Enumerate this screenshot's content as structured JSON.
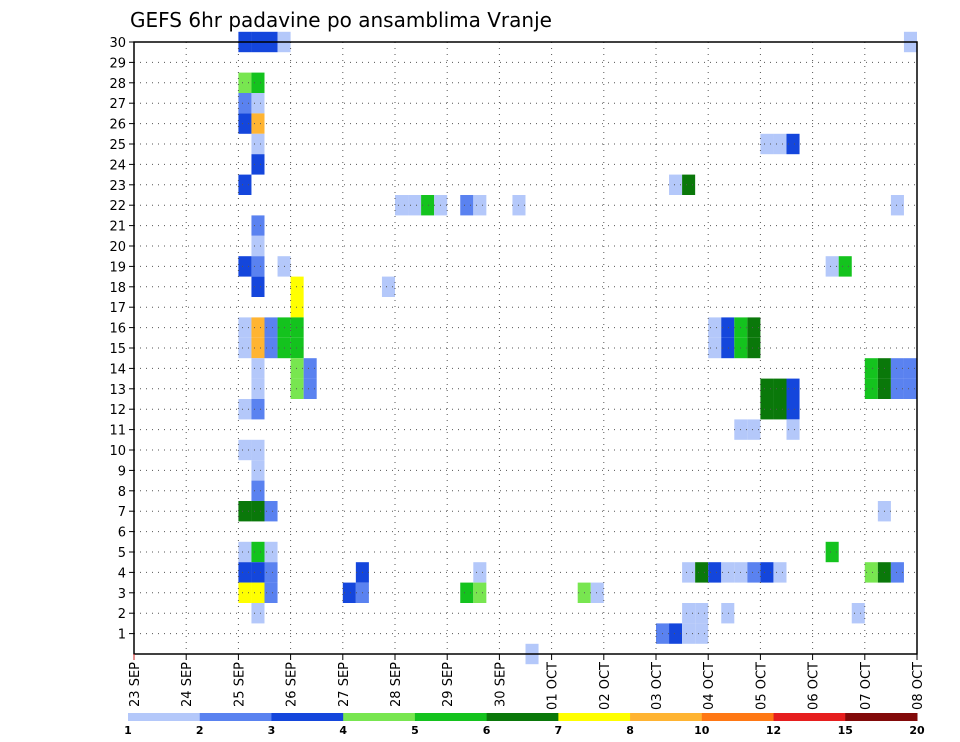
{
  "chart_data": {
    "type": "heatmap",
    "title": "GEFS 6hr padavine po ansamblima Vranje",
    "xlabel": "",
    "ylabel": "",
    "x_tick_labels": [
      "23 SEP",
      "24 SEP",
      "25 SEP",
      "26 SEP",
      "27 SEP",
      "28 SEP",
      "29 SEP",
      "30 SEP",
      "01 OCT",
      "02 OCT",
      "03 OCT",
      "04 OCT",
      "05 OCT",
      "06 OCT",
      "07 OCT",
      "08 OCT"
    ],
    "y_tick_labels": [
      "1",
      "2",
      "3",
      "4",
      "5",
      "6",
      "7",
      "8",
      "9",
      "10",
      "11",
      "12",
      "13",
      "14",
      "15",
      "16",
      "17",
      "18",
      "19",
      "20",
      "21",
      "22",
      "23",
      "24",
      "25",
      "26",
      "27",
      "28",
      "29",
      "30"
    ],
    "xlim_steps": [
      0,
      60
    ],
    "steps_per_day": 4,
    "ylim": [
      0,
      30
    ],
    "grid": true,
    "legend_position": "bottom",
    "legend": {
      "colors": [
        "#b4c8fa",
        "#5a82f0",
        "#1446dc",
        "#78e650",
        "#14c31e",
        "#0a780a",
        "#ffff00",
        "#ffb432",
        "#ff7814",
        "#e61e1e",
        "#820a0a"
      ],
      "labels": [
        "1",
        "2",
        "3",
        "4",
        "5",
        "6",
        "7",
        "8",
        "10",
        "12",
        "15",
        "20"
      ]
    },
    "cells": [
      {
        "member": 30,
        "step": 8,
        "value": 3
      },
      {
        "member": 30,
        "step": 9,
        "value": 3
      },
      {
        "member": 30,
        "step": 10,
        "value": 3
      },
      {
        "member": 30,
        "step": 11,
        "value": 1.5
      },
      {
        "member": 30,
        "step": 59,
        "value": 1.5
      },
      {
        "member": 28,
        "step": 8,
        "value": 4.5
      },
      {
        "member": 28,
        "step": 9,
        "value": 5.5
      },
      {
        "member": 27,
        "step": 8,
        "value": 2.5
      },
      {
        "member": 27,
        "step": 9,
        "value": 1.5
      },
      {
        "member": 26,
        "step": 8,
        "value": 3
      },
      {
        "member": 26,
        "step": 9,
        "value": 9
      },
      {
        "member": 25,
        "step": 9,
        "value": 1.5
      },
      {
        "member": 25,
        "step": 48,
        "value": 1.5
      },
      {
        "member": 25,
        "step": 49,
        "value": 1.5
      },
      {
        "member": 25,
        "step": 50,
        "value": 3
      },
      {
        "member": 24,
        "step": 9,
        "value": 3
      },
      {
        "member": 23,
        "step": 8,
        "value": 3
      },
      {
        "member": 23,
        "step": 41,
        "value": 1.5
      },
      {
        "member": 23,
        "step": 42,
        "value": 6.5
      },
      {
        "member": 22,
        "step": 20,
        "value": 1.5
      },
      {
        "member": 22,
        "step": 21,
        "value": 1.5
      },
      {
        "member": 22,
        "step": 22,
        "value": 5.5
      },
      {
        "member": 22,
        "step": 23,
        "value": 1.5
      },
      {
        "member": 22,
        "step": 25,
        "value": 2.5
      },
      {
        "member": 22,
        "step": 26,
        "value": 1.5
      },
      {
        "member": 22,
        "step": 29,
        "value": 1.5
      },
      {
        "member": 22,
        "step": 58,
        "value": 1.5
      },
      {
        "member": 21,
        "step": 9,
        "value": 2.5
      },
      {
        "member": 20,
        "step": 9,
        "value": 1.5
      },
      {
        "member": 19,
        "step": 8,
        "value": 3
      },
      {
        "member": 19,
        "step": 9,
        "value": 2.5
      },
      {
        "member": 19,
        "step": 11,
        "value": 1.5
      },
      {
        "member": 19,
        "step": 53,
        "value": 1.5
      },
      {
        "member": 19,
        "step": 54,
        "value": 5.5
      },
      {
        "member": 18,
        "step": 9,
        "value": 3
      },
      {
        "member": 18,
        "step": 12,
        "value": 7.5
      },
      {
        "member": 18,
        "step": 19,
        "value": 1.5
      },
      {
        "member": 17,
        "step": 12,
        "value": 7.5
      },
      {
        "member": 16,
        "step": 8,
        "value": 1.5
      },
      {
        "member": 16,
        "step": 9,
        "value": 9
      },
      {
        "member": 16,
        "step": 10,
        "value": 2.5
      },
      {
        "member": 16,
        "step": 11,
        "value": 5.5
      },
      {
        "member": 16,
        "step": 12,
        "value": 5.5
      },
      {
        "member": 16,
        "step": 44,
        "value": 1.5
      },
      {
        "member": 16,
        "step": 45,
        "value": 3
      },
      {
        "member": 16,
        "step": 46,
        "value": 5.5
      },
      {
        "member": 16,
        "step": 47,
        "value": 6.5
      },
      {
        "member": 15,
        "step": 8,
        "value": 1.5
      },
      {
        "member": 15,
        "step": 9,
        "value": 9
      },
      {
        "member": 15,
        "step": 10,
        "value": 2.5
      },
      {
        "member": 15,
        "step": 11,
        "value": 5.5
      },
      {
        "member": 15,
        "step": 12,
        "value": 5.5
      },
      {
        "member": 15,
        "step": 44,
        "value": 1.5
      },
      {
        "member": 15,
        "step": 45,
        "value": 3
      },
      {
        "member": 15,
        "step": 46,
        "value": 5.5
      },
      {
        "member": 15,
        "step": 47,
        "value": 6.5
      },
      {
        "member": 14,
        "step": 9,
        "value": 1.5
      },
      {
        "member": 14,
        "step": 12,
        "value": 4.5
      },
      {
        "member": 14,
        "step": 13,
        "value": 2.5
      },
      {
        "member": 14,
        "step": 56,
        "value": 5.5
      },
      {
        "member": 14,
        "step": 57,
        "value": 6.5
      },
      {
        "member": 14,
        "step": 58,
        "value": 2.5
      },
      {
        "member": 14,
        "step": 59,
        "value": 2.5
      },
      {
        "member": 13,
        "step": 9,
        "value": 1.5
      },
      {
        "member": 13,
        "step": 12,
        "value": 4.5
      },
      {
        "member": 13,
        "step": 13,
        "value": 2.5
      },
      {
        "member": 13,
        "step": 48,
        "value": 6.5
      },
      {
        "member": 13,
        "step": 49,
        "value": 6.5
      },
      {
        "member": 13,
        "step": 50,
        "value": 3
      },
      {
        "member": 13,
        "step": 56,
        "value": 5.5
      },
      {
        "member": 13,
        "step": 57,
        "value": 6.5
      },
      {
        "member": 13,
        "step": 58,
        "value": 2.5
      },
      {
        "member": 13,
        "step": 59,
        "value": 2.5
      },
      {
        "member": 12,
        "step": 8,
        "value": 1.5
      },
      {
        "member": 12,
        "step": 9,
        "value": 2.5
      },
      {
        "member": 12,
        "step": 48,
        "value": 6.5
      },
      {
        "member": 12,
        "step": 49,
        "value": 6.5
      },
      {
        "member": 12,
        "step": 50,
        "value": 3
      },
      {
        "member": 11,
        "step": 46,
        "value": 1.5
      },
      {
        "member": 11,
        "step": 47,
        "value": 1.5
      },
      {
        "member": 11,
        "step": 50,
        "value": 1.5
      },
      {
        "member": 10,
        "step": 8,
        "value": 1.5
      },
      {
        "member": 10,
        "step": 9,
        "value": 1.5
      },
      {
        "member": 9,
        "step": 9,
        "value": 1.5
      },
      {
        "member": 8,
        "step": 9,
        "value": 2.5
      },
      {
        "member": 7,
        "step": 8,
        "value": 6.5
      },
      {
        "member": 7,
        "step": 9,
        "value": 6.5
      },
      {
        "member": 7,
        "step": 10,
        "value": 2.5
      },
      {
        "member": 7,
        "step": 57,
        "value": 1.5
      },
      {
        "member": 5,
        "step": 8,
        "value": 1.5
      },
      {
        "member": 5,
        "step": 9,
        "value": 5.5
      },
      {
        "member": 5,
        "step": 10,
        "value": 1.5
      },
      {
        "member": 5,
        "step": 53,
        "value": 5.5
      },
      {
        "member": 4,
        "step": 8,
        "value": 3
      },
      {
        "member": 4,
        "step": 9,
        "value": 3
      },
      {
        "member": 4,
        "step": 10,
        "value": 2.5
      },
      {
        "member": 4,
        "step": 17,
        "value": 3
      },
      {
        "member": 4,
        "step": 26,
        "value": 1.5
      },
      {
        "member": 4,
        "step": 42,
        "value": 1.5
      },
      {
        "member": 4,
        "step": 43,
        "value": 6.5
      },
      {
        "member": 4,
        "step": 44,
        "value": 3
      },
      {
        "member": 4,
        "step": 45,
        "value": 1.5
      },
      {
        "member": 4,
        "step": 46,
        "value": 1.5
      },
      {
        "member": 4,
        "step": 47,
        "value": 2.5
      },
      {
        "member": 4,
        "step": 48,
        "value": 3
      },
      {
        "member": 4,
        "step": 49,
        "value": 1.5
      },
      {
        "member": 4,
        "step": 56,
        "value": 4.5
      },
      {
        "member": 4,
        "step": 57,
        "value": 6.5
      },
      {
        "member": 4,
        "step": 58,
        "value": 2.5
      },
      {
        "member": 3,
        "step": 8,
        "value": 7.5
      },
      {
        "member": 3,
        "step": 9,
        "value": 7.5
      },
      {
        "member": 3,
        "step": 10,
        "value": 2.5
      },
      {
        "member": 3,
        "step": 16,
        "value": 3
      },
      {
        "member": 3,
        "step": 17,
        "value": 2.5
      },
      {
        "member": 3,
        "step": 25,
        "value": 5.5
      },
      {
        "member": 3,
        "step": 26,
        "value": 4.5
      },
      {
        "member": 3,
        "step": 34,
        "value": 4.5
      },
      {
        "member": 3,
        "step": 35,
        "value": 1.5
      },
      {
        "member": 2,
        "step": 9,
        "value": 1.5
      },
      {
        "member": 2,
        "step": 42,
        "value": 1.5
      },
      {
        "member": 2,
        "step": 43,
        "value": 1.5
      },
      {
        "member": 2,
        "step": 45,
        "value": 1.5
      },
      {
        "member": 2,
        "step": 55,
        "value": 1.5
      },
      {
        "member": 1,
        "step": 40,
        "value": 2.5
      },
      {
        "member": 1,
        "step": 41,
        "value": 3
      },
      {
        "member": 1,
        "step": 42,
        "value": 1.5
      },
      {
        "member": 1,
        "step": 43,
        "value": 1.5
      },
      {
        "member": 0,
        "step": 30,
        "value": 1.5
      }
    ]
  }
}
